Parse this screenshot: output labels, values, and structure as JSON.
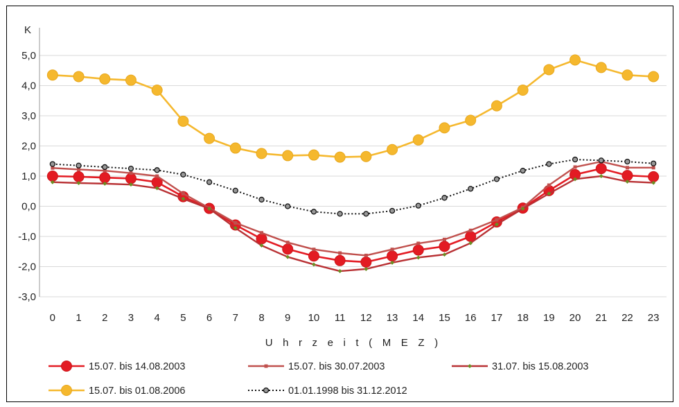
{
  "chart_data": {
    "type": "line",
    "ylabel": "K",
    "xlabel": "U h r z e i t  ( M E Z )",
    "ylim": [
      -3.0,
      5.0
    ],
    "y_ticks": [
      "5,0",
      "4,0",
      "3,0",
      "2,0",
      "1,0",
      "0,0",
      "-1,0",
      "-2,0",
      "-3,0"
    ],
    "x": [
      "0",
      "1",
      "2",
      "3",
      "4",
      "5",
      "6",
      "7",
      "8",
      "9",
      "10",
      "11",
      "12",
      "13",
      "14",
      "15",
      "16",
      "17",
      "18",
      "19",
      "20",
      "21",
      "22",
      "23"
    ],
    "grid": "horizontal",
    "legend_position": "bottom",
    "series": [
      {
        "name": "15.07. bis 14.08.2003",
        "color": "#e31b23",
        "marker": "circle-large",
        "values": [
          1.0,
          0.98,
          0.95,
          0.92,
          0.8,
          0.32,
          -0.07,
          -0.62,
          -1.08,
          -1.42,
          -1.65,
          -1.8,
          -1.85,
          -1.65,
          -1.45,
          -1.33,
          -1.0,
          -0.52,
          -0.06,
          0.52,
          1.05,
          1.25,
          1.02,
          0.98
        ]
      },
      {
        "name": "15.07. bis 30.07.2003",
        "color": "#c0504d",
        "marker": "square-small",
        "values": [
          1.27,
          1.22,
          1.18,
          1.1,
          1.0,
          0.42,
          -0.06,
          -0.55,
          -0.88,
          -1.2,
          -1.43,
          -1.55,
          -1.63,
          -1.43,
          -1.23,
          -1.1,
          -0.8,
          -0.45,
          -0.04,
          0.7,
          1.3,
          1.48,
          1.28,
          1.28
        ]
      },
      {
        "name": "31.07. bis 15.08.2003",
        "color": "#b83033",
        "marker": "diamond-small",
        "values": [
          0.8,
          0.77,
          0.75,
          0.72,
          0.6,
          0.25,
          -0.08,
          -0.72,
          -1.3,
          -1.68,
          -1.93,
          -2.15,
          -2.08,
          -1.87,
          -1.7,
          -1.6,
          -1.22,
          -0.6,
          -0.08,
          0.42,
          0.9,
          1.0,
          0.82,
          0.78
        ]
      },
      {
        "name": "15.07. bis 01.08.2006",
        "color": "#f5b82e",
        "marker": "circle-large",
        "values": [
          4.35,
          4.3,
          4.22,
          4.18,
          3.85,
          2.82,
          2.25,
          1.93,
          1.75,
          1.68,
          1.7,
          1.63,
          1.65,
          1.88,
          2.2,
          2.6,
          2.85,
          3.33,
          3.85,
          4.53,
          4.85,
          4.6,
          4.35,
          4.3
        ]
      },
      {
        "name": "01.01.1998 bis 31.12.2012",
        "color": "#111111",
        "marker": "circle-small",
        "dashed": true,
        "values": [
          1.4,
          1.35,
          1.3,
          1.25,
          1.2,
          1.05,
          0.8,
          0.52,
          0.22,
          0.0,
          -0.18,
          -0.25,
          -0.25,
          -0.15,
          0.02,
          0.28,
          0.58,
          0.9,
          1.18,
          1.4,
          1.55,
          1.52,
          1.48,
          1.42
        ]
      }
    ]
  }
}
